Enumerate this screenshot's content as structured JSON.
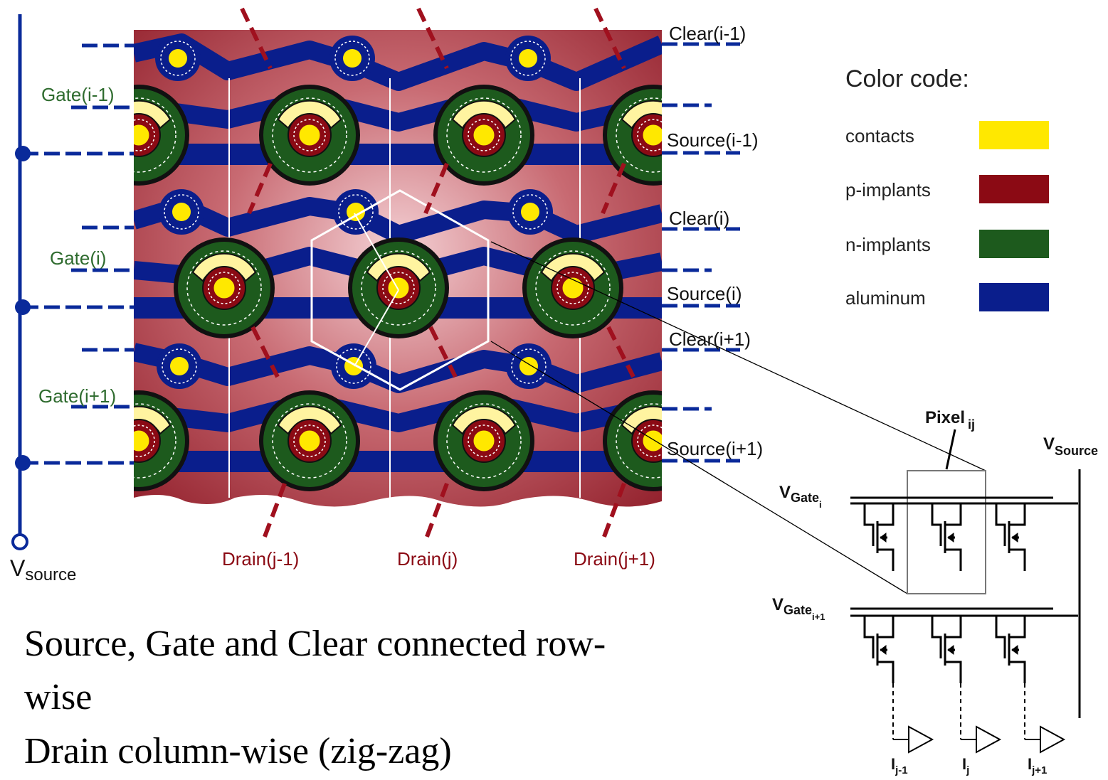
{
  "rows": {
    "gate": [
      "Gate(i-1)",
      "Gate(i)",
      "Gate(i+1)"
    ],
    "clear": [
      "Clear(i-1)",
      "Clear(i)",
      "Clear(i+1)"
    ],
    "source": [
      "Source(i-1)",
      "Source(i)",
      "Source(i+1)"
    ]
  },
  "columns": {
    "drain": [
      "Drain(j-1)",
      "Drain(j)",
      "Drain(j+1)"
    ]
  },
  "vsource": {
    "base": "V",
    "sub": "source"
  },
  "legend": {
    "title": "Color code:",
    "items": [
      {
        "label": "contacts",
        "color": "#ffe800"
      },
      {
        "label": "p-implants",
        "color": "#8b0a14"
      },
      {
        "label": "n-implants",
        "color": "#1d5a1d"
      },
      {
        "label": "aluminum",
        "color": "#0a1e8c"
      }
    ]
  },
  "circuit": {
    "pixel": {
      "base": "Pixel",
      "sub": "ij"
    },
    "vsource": {
      "base": "V",
      "sub": "Source"
    },
    "vgate_i": {
      "base": "V",
      "sub": "Gate",
      "subsub": "i"
    },
    "vgate_i1": {
      "base": "V",
      "sub": "Gate",
      "subsub": "i+1"
    },
    "currents": [
      {
        "base": "I",
        "sub": "j-1"
      },
      {
        "base": "I",
        "sub": "j"
      },
      {
        "base": "I",
        "sub": "j+1"
      }
    ]
  },
  "caption": {
    "line1": "Source, Gate and Clear connected row-",
    "line2": "wise",
    "line3": "Drain column-wise (zig-zag)"
  }
}
